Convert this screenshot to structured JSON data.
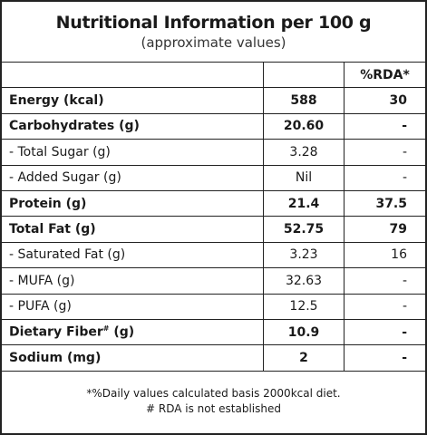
{
  "header": {
    "title": "Nutritional Information per 100 g",
    "subtitle": "(approximate values)"
  },
  "table": {
    "columns": [
      "%RDA*"
    ],
    "rows": [
      {
        "label": "Energy (kcal)",
        "value": "588",
        "rda": "30",
        "bold": true
      },
      {
        "label": "Carbohydrates (g)",
        "value": "20.60",
        "rda": "-",
        "bold": true
      },
      {
        "label": "- Total Sugar (g)",
        "value": "3.28",
        "rda": "-",
        "bold": false
      },
      {
        "label": "- Added Sugar (g)",
        "value": "Nil",
        "rda": "-",
        "bold": false
      },
      {
        "label": "Protein (g)",
        "value": "21.4",
        "rda": "37.5",
        "bold": true
      },
      {
        "label": "Total Fat (g)",
        "value": "52.75",
        "rda": "79",
        "bold": true
      },
      {
        "label": "- Saturated Fat (g)",
        "value": "3.23",
        "rda": "16",
        "bold": false
      },
      {
        "label": "- MUFA (g)",
        "value": "32.63",
        "rda": "-",
        "bold": false
      },
      {
        "label": "- PUFA (g)",
        "value": "12.5",
        "rda": "-",
        "bold": false
      },
      {
        "label": "Dietary Fiber",
        "note": "#",
        "unit": "(g)",
        "value": "10.9",
        "rda": "-",
        "bold": true
      },
      {
        "label": "Sodium (mg)",
        "value": "2",
        "rda": "-",
        "bold": true
      }
    ]
  },
  "footer": {
    "lines": [
      "*%Daily values calculated basis 2000kcal diet.",
      "# RDA is not established"
    ]
  }
}
